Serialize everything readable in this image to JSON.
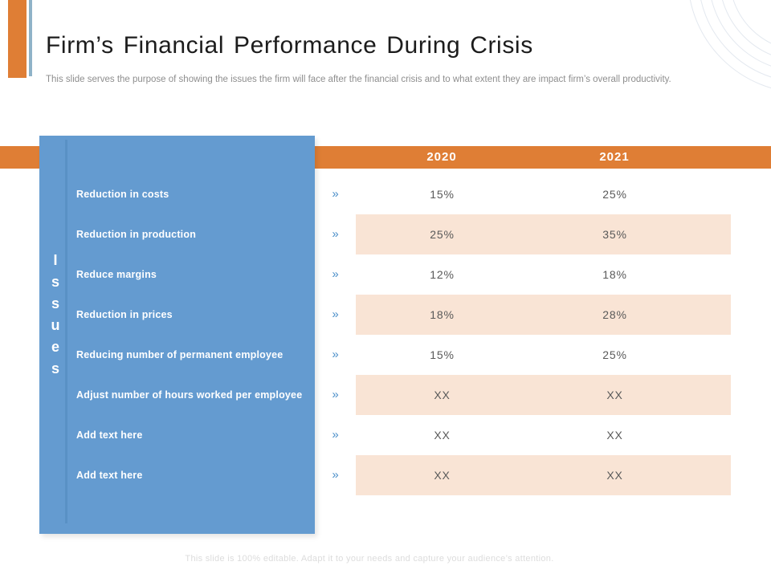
{
  "slide": {
    "title": "Firm’s Financial Performance During Crisis",
    "subtitle": "This slide serves the purpose of showing the issues the firm will face after the financial crisis and to what extent they are impact firm’s overall productivity.",
    "footer": "This slide is 100% editable. Adapt it to your needs and capture your audience’s attention."
  },
  "table": {
    "side_label": "Issues",
    "bullet": "»",
    "columns": [
      "2020",
      "2021"
    ],
    "rows": [
      {
        "label": "Reduction in costs",
        "v2020": "15%",
        "v2021": "25%",
        "highlight": false
      },
      {
        "label": "Reduction in production",
        "v2020": "25%",
        "v2021": "35%",
        "highlight": true
      },
      {
        "label": "Reduce margins",
        "v2020": "12%",
        "v2021": "18%",
        "highlight": false
      },
      {
        "label": "Reduction in prices",
        "v2020": "18%",
        "v2021": "28%",
        "highlight": true
      },
      {
        "label": "Reducing number of permanent employee",
        "v2020": "15%",
        "v2021": "25%",
        "highlight": false
      },
      {
        "label": "Adjust number of hours worked per employee",
        "v2020": "XX",
        "v2021": "XX",
        "highlight": true
      },
      {
        "label": "Add text here",
        "v2020": "XX",
        "v2021": "XX",
        "highlight": false
      },
      {
        "label": "Add text here",
        "v2020": "XX",
        "v2021": "XX",
        "highlight": true
      }
    ]
  },
  "colors": {
    "accent_orange": "#DF7E35",
    "panel_blue": "#649BD0",
    "panel_divider_blue": "#5991C5",
    "accent_bar_blue": "#8FB3C8",
    "row_highlight_peach": "#F9E4D5",
    "value_text": "#595959",
    "subtitle_gray": "#8E8E8E",
    "footer_gray": "#DCDCDC",
    "arc_gray": "#E3E8EF"
  }
}
